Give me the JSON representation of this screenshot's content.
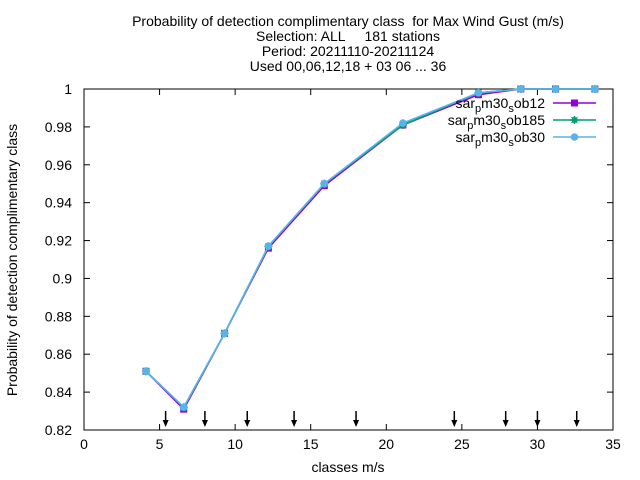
{
  "chart_data": {
    "type": "line",
    "title_lines": [
      "Probability of detection complimentary class  for Max Wind Gust (m/s)",
      "Selection: ALL     181 stations",
      "Period: 20211110-20211124",
      "Used 00,06,12,18 + 03 06 ... 36"
    ],
    "xlabel": "classes m/s",
    "ylabel": "Probability of detection complimentary class",
    "xlim": [
      0,
      35
    ],
    "ylim": [
      0.82,
      1.0
    ],
    "xticks": [
      0,
      5,
      10,
      15,
      20,
      25,
      30,
      35
    ],
    "yticks": [
      0.82,
      0.84,
      0.86,
      0.88,
      0.9,
      0.92,
      0.94,
      0.96,
      0.98,
      1
    ],
    "ytick_labels": [
      "0.82",
      "0.84",
      "0.86",
      "0.88",
      "0.9",
      "0.92",
      "0.94",
      "0.96",
      "0.98",
      "1"
    ],
    "legend_position": "top-right",
    "series": [
      {
        "name_parts": [
          [
            "sar",
            ""
          ],
          [
            "p",
            "sub"
          ],
          [
            "m30",
            ""
          ],
          [
            "s",
            "sub"
          ],
          [
            "ob12",
            ""
          ]
        ],
        "color": "#9400d3",
        "marker": "square",
        "x": [
          4.1,
          6.6,
          9.3,
          12.2,
          15.9,
          21.1,
          26.1,
          28.9,
          31.2,
          33.8
        ],
        "y": [
          0.851,
          0.831,
          0.871,
          0.916,
          0.949,
          0.981,
          0.997,
          1.0,
          1.0,
          1.0
        ]
      },
      {
        "name_parts": [
          [
            "sar",
            ""
          ],
          [
            "p",
            "sub"
          ],
          [
            "m30",
            ""
          ],
          [
            "s",
            "sub"
          ],
          [
            "ob185",
            ""
          ]
        ],
        "color": "#009e73",
        "marker": "star",
        "x": [
          4.1,
          6.6,
          9.3,
          12.2,
          15.9,
          21.1,
          26.1,
          28.9,
          31.2,
          33.8
        ],
        "y": [
          0.851,
          0.832,
          0.871,
          0.917,
          0.95,
          0.981,
          0.998,
          1.0,
          1.0,
          1.0
        ]
      },
      {
        "name_parts": [
          [
            "sar",
            ""
          ],
          [
            "p",
            "sub"
          ],
          [
            "m30",
            ""
          ],
          [
            "s",
            "sub"
          ],
          [
            "ob30",
            ""
          ]
        ],
        "color": "#56b4e9",
        "marker": "circle",
        "x": [
          4.1,
          6.6,
          9.3,
          12.2,
          15.9,
          21.1,
          26.1,
          28.9,
          31.2,
          33.8
        ],
        "y": [
          0.851,
          0.832,
          0.871,
          0.917,
          0.95,
          0.982,
          0.998,
          1.0,
          1.0,
          1.0
        ]
      }
    ],
    "arrow_markers_x": [
      5.4,
      8.0,
      10.8,
      13.9,
      18.0,
      24.5,
      27.9,
      30.0,
      32.6
    ]
  }
}
